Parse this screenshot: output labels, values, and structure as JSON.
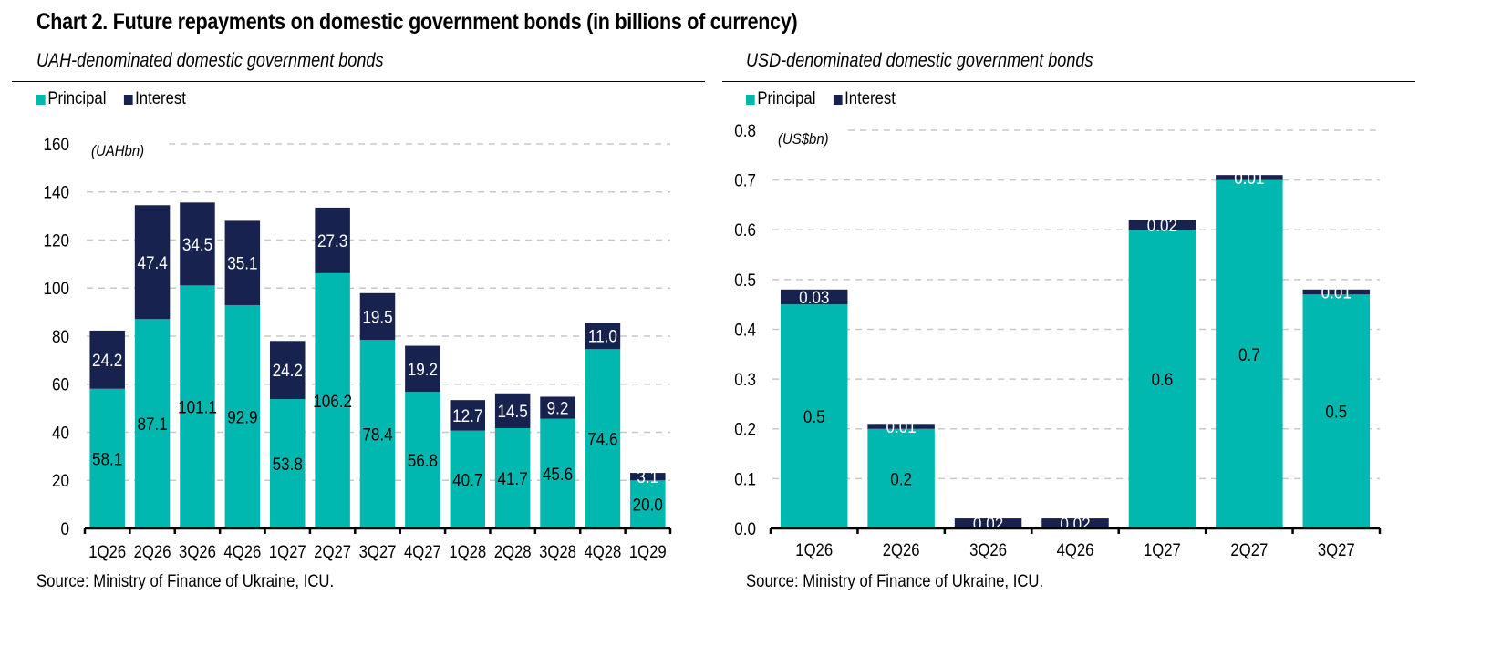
{
  "title": "Chart 2. Future repayments on domestic government bonds (in billions of currency)",
  "colors": {
    "principal": "#00b8b0",
    "interest": "#18224e",
    "grid": "#c8c8c8"
  },
  "chart_data": [
    {
      "type": "bar",
      "stacked": true,
      "title": "UAH-denominated domestic government bonds",
      "unit_label": "(UAHbn)",
      "xlabel": "",
      "ylabel": "",
      "ylim": [
        0,
        160
      ],
      "yticks": [
        0,
        20,
        40,
        60,
        80,
        100,
        120,
        140,
        160
      ],
      "ytick_labels": [
        "0",
        "20",
        "40",
        "60",
        "80",
        "100",
        "120",
        "140",
        "160"
      ],
      "grid": true,
      "legend": "top-left",
      "categories": [
        "1Q26",
        "2Q26",
        "3Q26",
        "4Q26",
        "1Q27",
        "2Q27",
        "3Q27",
        "4Q27",
        "1Q28",
        "2Q28",
        "3Q28",
        "4Q28",
        "1Q29"
      ],
      "series": [
        {
          "name": "Principal",
          "values": [
            58.1,
            87.1,
            101.1,
            92.9,
            53.8,
            106.2,
            78.4,
            56.8,
            40.7,
            41.7,
            45.6,
            74.6,
            20.0
          ],
          "labels": [
            "58.1",
            "87.1",
            "101.1",
            "92.9",
            "53.8",
            "106.2",
            "78.4",
            "56.8",
            "40.7",
            "41.7",
            "45.6",
            "74.6",
            "20.0"
          ]
        },
        {
          "name": "Interest",
          "values": [
            24.2,
            47.4,
            34.5,
            35.1,
            24.2,
            27.3,
            19.5,
            19.2,
            12.7,
            14.5,
            9.2,
            11.0,
            3.1
          ],
          "labels": [
            "24.2",
            "47.4",
            "34.5",
            "35.1",
            "24.2",
            "27.3",
            "19.5",
            "19.2",
            "12.7",
            "14.5",
            "9.2",
            "11.0",
            "3.1"
          ]
        }
      ],
      "source": "Source: Ministry of Finance of Ukraine, ICU."
    },
    {
      "type": "bar",
      "stacked": true,
      "title": "USD-denominated domestic government bonds",
      "unit_label": "(US$bn)",
      "xlabel": "",
      "ylabel": "",
      "ylim": [
        0,
        0.8
      ],
      "yticks": [
        0,
        0.1,
        0.2,
        0.3,
        0.4,
        0.5,
        0.6,
        0.7,
        0.8
      ],
      "ytick_labels": [
        "0.0",
        "0.1",
        "0.2",
        "0.3",
        "0.4",
        "0.5",
        "0.6",
        "0.7",
        "0.8"
      ],
      "grid": true,
      "legend": "top-left",
      "categories": [
        "1Q26",
        "2Q26",
        "3Q26",
        "4Q26",
        "1Q27",
        "2Q27",
        "3Q27"
      ],
      "series": [
        {
          "name": "Principal",
          "values": [
            0.45,
            0.2,
            0.0,
            0.0,
            0.6,
            0.7,
            0.47
          ],
          "labels": [
            "0.5",
            "0.2",
            "",
            "",
            "0.6",
            "0.7",
            "0.5"
          ]
        },
        {
          "name": "Interest",
          "values": [
            0.03,
            0.01,
            0.02,
            0.02,
            0.02,
            0.01,
            0.01
          ],
          "labels": [
            "0.03",
            "0.01",
            "0.02",
            "0.02",
            "0.02",
            "0.01",
            "0.01"
          ]
        }
      ],
      "source": "Source: Ministry of Finance of Ukraine, ICU."
    }
  ]
}
